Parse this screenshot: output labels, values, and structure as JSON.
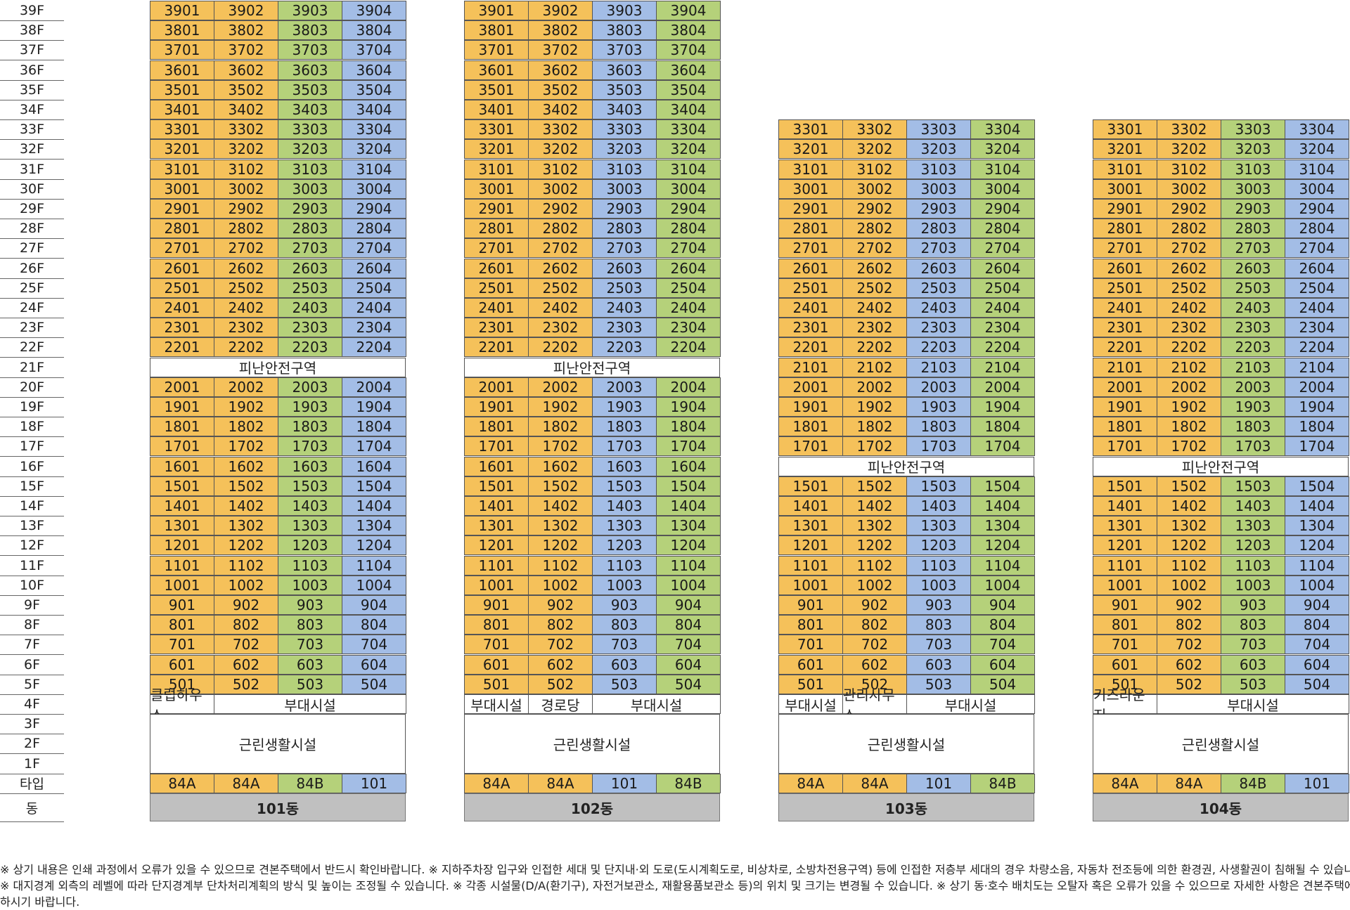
{
  "colors": {
    "orange": "#f5c15a",
    "green": "#b5d17a",
    "blue": "#a3bde6",
    "dong_bar": "#c0c0c0"
  },
  "axis": {
    "floors": [
      "39F",
      "38F",
      "37F",
      "36F",
      "35F",
      "34F",
      "33F",
      "32F",
      "31F",
      "30F",
      "29F",
      "28F",
      "27F",
      "26F",
      "25F",
      "24F",
      "23F",
      "22F",
      "21F",
      "20F",
      "19F",
      "18F",
      "17F",
      "16F",
      "15F",
      "14F",
      "13F",
      "12F",
      "11F",
      "10F",
      "9F",
      "8F",
      "7F",
      "6F",
      "5F",
      "4F",
      "3F",
      "2F",
      "1F"
    ],
    "type_label": "타입",
    "dong_label": "동"
  },
  "buildings": [
    {
      "name": "101동",
      "top_floor": 39,
      "column_colors": [
        "orange",
        "orange",
        "green",
        "blue"
      ],
      "refuge_floors": [
        21
      ],
      "refuge_label": "피난안전구역",
      "floor4": [
        {
          "label": "클럽하우스",
          "span": 1
        },
        {
          "label": "부대시설",
          "span": 3
        }
      ],
      "ground_label": "근린생활시설",
      "types": [
        "84A",
        "84A",
        "84B",
        "101"
      ]
    },
    {
      "name": "102동",
      "top_floor": 39,
      "column_colors": [
        "orange",
        "orange",
        "blue",
        "green"
      ],
      "refuge_floors": [
        21
      ],
      "refuge_label": "피난안전구역",
      "floor4": [
        {
          "label": "부대시설",
          "span": 1
        },
        {
          "label": "경로당",
          "span": 1
        },
        {
          "label": "부대시설",
          "span": 2
        }
      ],
      "ground_label": "근린생활시설",
      "types": [
        "84A",
        "84A",
        "101",
        "84B"
      ]
    },
    {
      "name": "103동",
      "top_floor": 33,
      "column_colors": [
        "orange",
        "orange",
        "blue",
        "green"
      ],
      "refuge_floors": [
        16
      ],
      "refuge_label": "피난안전구역",
      "floor4": [
        {
          "label": "부대시설",
          "span": 1
        },
        {
          "label": "관리사무소",
          "span": 1
        },
        {
          "label": "부대시설",
          "span": 2
        }
      ],
      "ground_label": "근린생활시설",
      "types": [
        "84A",
        "84A",
        "101",
        "84B"
      ]
    },
    {
      "name": "104동",
      "top_floor": 33,
      "column_colors": [
        "orange",
        "orange",
        "green",
        "blue"
      ],
      "refuge_floors": [
        16
      ],
      "refuge_label": "피난안전구역",
      "floor4": [
        {
          "label": "키즈라운지",
          "span": 1
        },
        {
          "label": "부대시설",
          "span": 3
        }
      ],
      "ground_label": "근린생활시설",
      "types": [
        "84A",
        "84A",
        "84B",
        "101"
      ]
    }
  ],
  "notes": [
    "※ 상기 내용은 인쇄 과정에서 오류가 있을 수 있으므로 견본주택에서 반드시 확인바랍니다. ※ 지하주차장 입구와 인접한 세대 및 단지내·외 도로(도시계획도로, 비상차로, 소방차전용구역) 등에 인접한 저층부 세대의 경우 차량소음, 자동차 전조등에 의한 환경권, 사생활권이 침해될 수 있습니다.",
    "※ 대지경계 외측의 레벨에 따라 단지경계부 단차처리계획의 방식 및 높이는 조정될 수 있습니다. ※ 각종 시설물(D/A(환기구), 자전거보관소, 재활용품보관소 등)의 위치 및 크기는 변경될 수 있습니다. ※ 상기 동·호수 배치도는 오탈자 혹은 오류가 있을 수 있으므로 자세한 사항은 견본주택에 문의",
    "하시기 바랍니다."
  ]
}
